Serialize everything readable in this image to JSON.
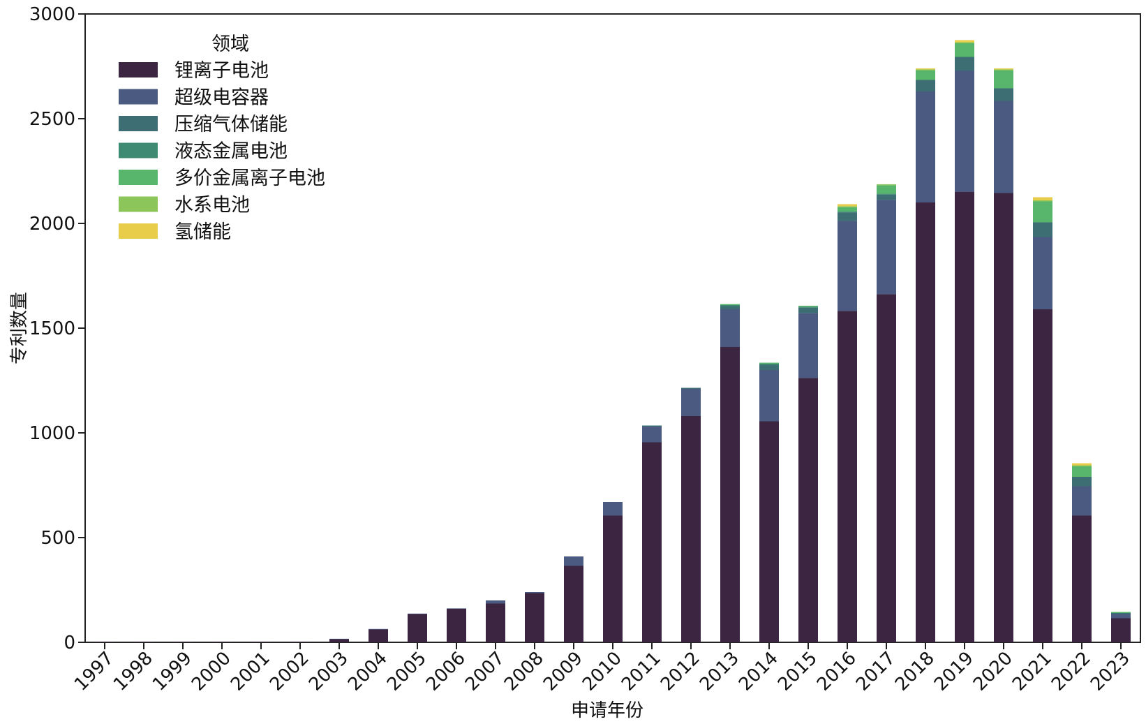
{
  "chart_data": {
    "type": "bar",
    "stacked": true,
    "xlabel": "申请年份",
    "ylabel": "专利数量",
    "ylim": [
      0,
      3000
    ],
    "yticks": [
      0,
      500,
      1000,
      1500,
      2000,
      2500,
      3000
    ],
    "grid": false,
    "legend": {
      "title": "领域",
      "position": "top-left"
    },
    "categories": [
      "1997",
      "1998",
      "1999",
      "2000",
      "2001",
      "2002",
      "2003",
      "2004",
      "2005",
      "2006",
      "2007",
      "2008",
      "2009",
      "2010",
      "2011",
      "2012",
      "2013",
      "2014",
      "2015",
      "2016",
      "2017",
      "2018",
      "2019",
      "2020",
      "2021",
      "2022",
      "2023"
    ],
    "series": [
      {
        "name": "锂离子电池",
        "color": "#3b2541",
        "values": [
          2,
          2,
          2,
          2,
          2,
          2,
          15,
          62,
          135,
          160,
          185,
          235,
          365,
          605,
          955,
          1080,
          1410,
          1055,
          1262,
          1582,
          1662,
          2100,
          2150,
          2145,
          1590,
          605,
          115
        ]
      },
      {
        "name": "超级电容器",
        "color": "#4a5a80",
        "values": [
          0,
          0,
          0,
          0,
          0,
          0,
          2,
          2,
          2,
          2,
          15,
          5,
          45,
          65,
          75,
          130,
          180,
          245,
          310,
          430,
          450,
          530,
          580,
          440,
          345,
          140,
          20
        ]
      },
      {
        "name": "压缩气体储能",
        "color": "#3d6e73",
        "values": [
          0,
          0,
          0,
          0,
          0,
          0,
          0,
          0,
          0,
          0,
          0,
          0,
          0,
          0,
          5,
          5,
          15,
          25,
          25,
          40,
          25,
          55,
          65,
          60,
          70,
          45,
          5
        ]
      },
      {
        "name": "液态金属电池",
        "color": "#3f8a73",
        "values": [
          0,
          0,
          0,
          0,
          0,
          0,
          0,
          0,
          0,
          0,
          0,
          0,
          0,
          0,
          0,
          0,
          5,
          5,
          5,
          5,
          5,
          0,
          0,
          0,
          0,
          0,
          0
        ]
      },
      {
        "name": "多价金属离子电池",
        "color": "#57b56c",
        "values": [
          0,
          0,
          0,
          0,
          0,
          0,
          0,
          0,
          0,
          0,
          0,
          0,
          0,
          0,
          0,
          0,
          5,
          5,
          5,
          20,
          40,
          45,
          65,
          85,
          100,
          50,
          5
        ]
      },
      {
        "name": "水系电池",
        "color": "#8cc65a",
        "values": [
          0,
          0,
          0,
          0,
          0,
          0,
          0,
          0,
          0,
          0,
          0,
          0,
          0,
          0,
          0,
          0,
          0,
          0,
          0,
          5,
          5,
          5,
          5,
          5,
          5,
          5,
          0
        ]
      },
      {
        "name": "氢储能",
        "color": "#e8cd4b",
        "values": [
          0,
          0,
          0,
          0,
          0,
          0,
          0,
          0,
          0,
          0,
          0,
          0,
          0,
          0,
          0,
          0,
          0,
          0,
          0,
          10,
          0,
          5,
          10,
          5,
          15,
          10,
          0
        ]
      }
    ]
  }
}
